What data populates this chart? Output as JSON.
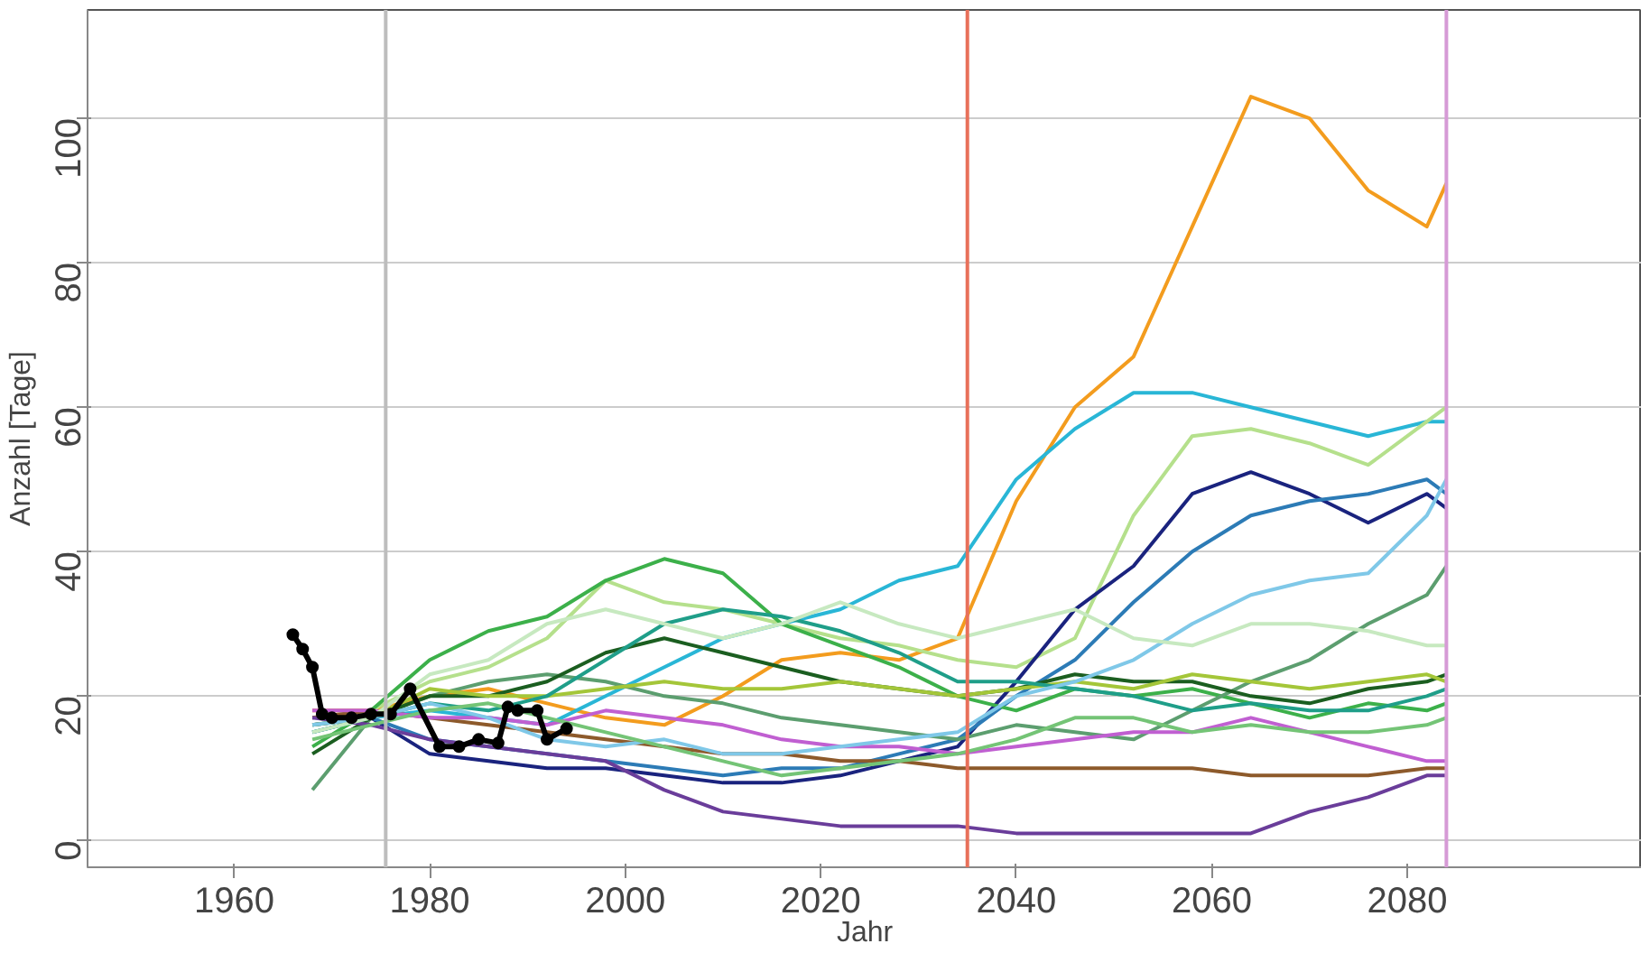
{
  "chart_data": {
    "type": "line",
    "xlabel": "Jahr",
    "ylabel": "Anzahl [Tage]",
    "xlim": [
      1945,
      2104
    ],
    "ylim": [
      -3.7,
      115
    ],
    "xticks": [
      1960,
      1980,
      2000,
      2020,
      2040,
      2060,
      2080
    ],
    "yticks": [
      0,
      20,
      40,
      60,
      80,
      100
    ],
    "grid": "y",
    "line_style": "solid",
    "x": [
      1968,
      1974,
      1980,
      1986,
      1992,
      1998,
      2004,
      2010,
      2016,
      2022,
      2028,
      2034,
      2040,
      2046,
      2052,
      2058,
      2064,
      2070,
      2076,
      2082,
      2084
    ],
    "series": [
      {
        "color": "#f39c1e",
        "values": [
          18,
          18,
          20,
          21,
          19,
          17,
          16,
          20,
          25,
          26,
          25,
          28,
          47,
          60,
          67,
          85,
          103,
          100,
          90,
          85,
          91
        ]
      },
      {
        "color": "#29b6d6",
        "values": [
          16,
          17,
          18,
          17,
          16,
          20,
          24,
          28,
          30,
          32,
          36,
          38,
          50,
          57,
          62,
          62,
          60,
          58,
          56,
          58,
          58
        ]
      },
      {
        "color": "#b5e08c",
        "values": [
          17,
          18,
          22,
          24,
          28,
          36,
          33,
          32,
          30,
          28,
          27,
          25,
          24,
          28,
          45,
          56,
          57,
          55,
          52,
          58,
          60
        ]
      },
      {
        "color": "#1a237e",
        "values": [
          16,
          17,
          12,
          11,
          10,
          10,
          9,
          8,
          8,
          9,
          11,
          13,
          22,
          32,
          38,
          48,
          51,
          48,
          44,
          48,
          46
        ]
      },
      {
        "color": "#2c7bb6",
        "values": [
          15,
          17,
          14,
          13,
          12,
          11,
          10,
          9,
          10,
          10,
          12,
          14,
          20,
          25,
          33,
          40,
          45,
          47,
          48,
          50,
          48
        ]
      },
      {
        "color": "#3cb04a",
        "values": [
          13,
          18,
          25,
          29,
          31,
          36,
          39,
          37,
          30,
          27,
          24,
          20,
          18,
          21,
          20,
          21,
          19,
          17,
          19,
          18,
          19
        ]
      },
      {
        "color": "#5c9e6f",
        "values": [
          7,
          17,
          20,
          22,
          23,
          22,
          20,
          19,
          17,
          16,
          15,
          14,
          16,
          15,
          14,
          18,
          22,
          25,
          30,
          34,
          38
        ]
      },
      {
        "color": "#1b5e20",
        "values": [
          12,
          17,
          20,
          20,
          22,
          26,
          28,
          26,
          24,
          22,
          21,
          20,
          21,
          23,
          22,
          22,
          20,
          19,
          21,
          22,
          23
        ]
      },
      {
        "color": "#8d5a2b",
        "values": [
          17,
          18,
          17,
          16,
          15,
          14,
          13,
          12,
          12,
          11,
          11,
          10,
          10,
          10,
          10,
          10,
          9,
          9,
          9,
          10,
          10
        ]
      },
      {
        "color": "#6a3d9a",
        "values": [
          17,
          16,
          14,
          13,
          12,
          11,
          7,
          4,
          3,
          2,
          2,
          2,
          1,
          1,
          1,
          1,
          1,
          4,
          6,
          9,
          9
        ]
      },
      {
        "color": "#c05fd1",
        "values": [
          18,
          18,
          17,
          17,
          16,
          18,
          17,
          16,
          14,
          13,
          13,
          12,
          13,
          14,
          15,
          15,
          17,
          15,
          13,
          11,
          11
        ]
      },
      {
        "color": "#a4c639",
        "values": [
          16,
          17,
          21,
          20,
          20,
          21,
          22,
          21,
          21,
          22,
          21,
          20,
          21,
          22,
          21,
          23,
          22,
          21,
          22,
          23,
          22
        ]
      },
      {
        "color": "#1f9e89",
        "values": [
          15,
          17,
          19,
          18,
          20,
          25,
          30,
          32,
          31,
          29,
          26,
          22,
          22,
          21,
          20,
          18,
          19,
          18,
          18,
          20,
          21
        ]
      },
      {
        "color": "#7fc8e8",
        "values": [
          16,
          17,
          19,
          17,
          14,
          13,
          14,
          12,
          12,
          13,
          14,
          15,
          20,
          22,
          25,
          30,
          34,
          36,
          37,
          45,
          50
        ]
      },
      {
        "color": "#c7e9c0",
        "values": [
          15,
          17,
          23,
          25,
          30,
          32,
          30,
          28,
          30,
          33,
          30,
          28,
          30,
          32,
          28,
          27,
          30,
          30,
          29,
          27,
          27
        ]
      },
      {
        "color": "#74c476",
        "values": [
          14,
          16,
          18,
          19,
          17,
          15,
          13,
          11,
          9,
          10,
          11,
          12,
          14,
          17,
          17,
          15,
          16,
          15,
          15,
          16,
          17
        ]
      },
      {
        "color": "#000000",
        "marker": "circle",
        "x": [
          1966,
          1967,
          1968,
          1969,
          1970,
          1972,
          1974,
          1976,
          1978,
          1981,
          1983,
          1985,
          1987,
          1988,
          1989,
          1991,
          1992,
          1994
        ],
        "values": [
          28.5,
          26.5,
          24,
          17.5,
          17,
          17,
          17.5,
          17.5,
          21,
          13,
          13,
          14,
          13.5,
          18.5,
          18,
          18,
          14,
          15.5
        ]
      }
    ],
    "ref_lines": [
      {
        "axis": "x",
        "value": 1975.5,
        "color": "#bdbdbd"
      },
      {
        "axis": "x",
        "value": 2035,
        "color": "#e8705a"
      },
      {
        "axis": "x",
        "value": 2084,
        "color": "#d69ad6"
      }
    ]
  }
}
